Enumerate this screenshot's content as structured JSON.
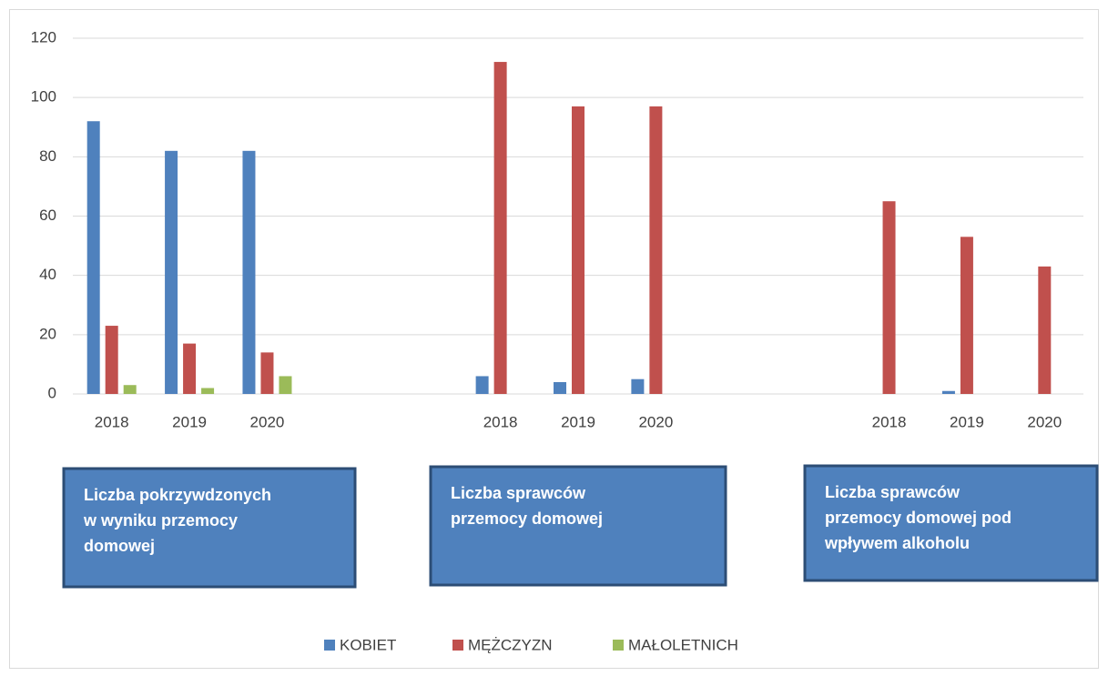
{
  "chart_data": {
    "type": "bar",
    "categories": [
      "2018",
      "2019",
      "2020",
      null,
      null,
      "2018",
      "2019",
      "2020",
      null,
      null,
      "2018",
      "2019",
      "2020"
    ],
    "series": [
      {
        "name": "KOBIET",
        "color": "#4f81bd",
        "values": [
          92,
          82,
          82,
          null,
          null,
          6,
          4,
          5,
          null,
          null,
          0,
          1,
          0
        ]
      },
      {
        "name": "MĘŻCZYZN",
        "color": "#c0504d",
        "values": [
          23,
          17,
          14,
          null,
          null,
          112,
          97,
          97,
          null,
          null,
          65,
          53,
          43
        ]
      },
      {
        "name": "MAŁOLETNICH",
        "color": "#9bbb59",
        "values": [
          3,
          2,
          6,
          null,
          null,
          0,
          0,
          0,
          null,
          null,
          0,
          0,
          0
        ]
      }
    ],
    "ylim": [
      0,
      120
    ],
    "yticks": [
      0,
      20,
      40,
      60,
      80,
      100,
      120
    ],
    "grid": true,
    "legend": "bottom",
    "annotations": [
      [
        "Liczba pokrzywdzonych",
        "w wyniku przemocy",
        "domowej"
      ],
      [
        "Liczba sprawców",
        "przemocy domowej"
      ],
      [
        "Liczba sprawców",
        "przemocy domowej pod",
        "wpływem alkoholu"
      ]
    ]
  }
}
